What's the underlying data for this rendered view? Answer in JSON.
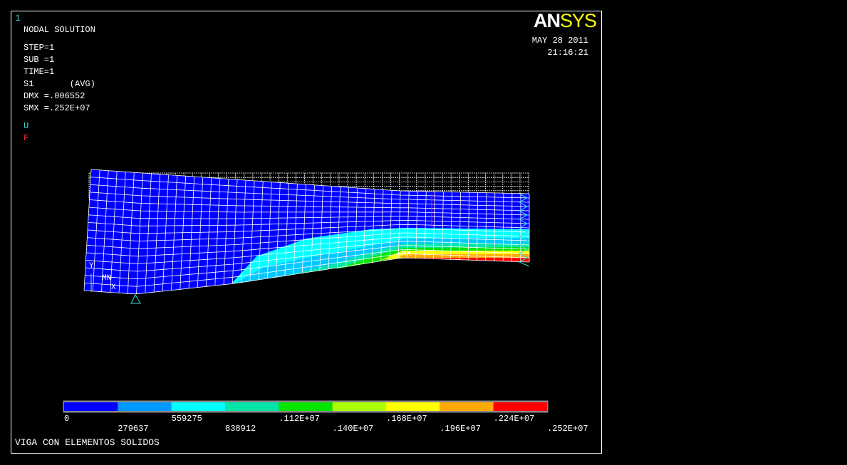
{
  "window_number": "1",
  "header": {
    "title": "NODAL SOLUTION",
    "lines": [
      "STEP=1",
      "SUB =1",
      "TIME=1",
      "S1       (AVG)",
      "DMX =.006552",
      "SMX =.252E+07"
    ]
  },
  "symbols": [
    "U",
    "F"
  ],
  "logo": [
    "AN",
    "SYS"
  ],
  "date": "MAY 28 2011",
  "time": "21:16:21",
  "plot_labels": [
    "Y",
    "MN",
    "X",
    "MX"
  ],
  "legend": {
    "labels": [
      "0",
      "279637",
      "559275",
      "838912",
      ".112E+07",
      ".140E+07",
      ".168E+07",
      ".196E+07",
      ".224E+07",
      ".252E+07"
    ],
    "colors": [
      "#0000ff",
      "#0099ff",
      "#00ffff",
      "#00e6a8",
      "#00e600",
      "#aaff00",
      "#ffff00",
      "#ffaa00",
      "#ff0000"
    ]
  },
  "footer": "VIGA CON ELEMENTOS SOLIDOS"
}
